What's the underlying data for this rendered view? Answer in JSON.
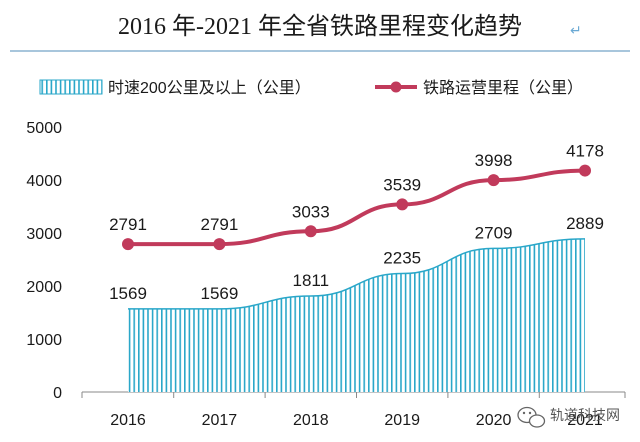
{
  "chart_data": {
    "type": "bar+line",
    "title": "2016 年-2021 年全省铁路里程变化趋势",
    "title_mark": "↵",
    "categories": [
      "2016",
      "2017",
      "2018",
      "2019",
      "2020",
      "2021"
    ],
    "y_ticks": [
      "0",
      "1000",
      "2000",
      "3000",
      "4000",
      "5000"
    ],
    "ylim": [
      0,
      5000
    ],
    "legend_position": "top",
    "grid": false,
    "series": [
      {
        "name": "时速200公里及以上（公里）",
        "kind": "area-bar",
        "values": [
          1569,
          1569,
          1811,
          2235,
          2709,
          2889
        ],
        "labels": [
          "1569",
          "1569",
          "1811",
          "2235",
          "2709",
          "2889"
        ],
        "color": "#2aa7c9"
      },
      {
        "name": "铁路运营里程（公里）",
        "kind": "line",
        "values": [
          2791,
          2791,
          3033,
          3539,
          3998,
          4178
        ],
        "labels": [
          "2791",
          "2791",
          "3033",
          "3539",
          "3998",
          "4178"
        ],
        "color": "#c13a5b"
      }
    ]
  },
  "watermark": {
    "text": "轨道科技网"
  },
  "colors": {
    "title_rule": "#a8c6dc",
    "axis": "#8a8a8a"
  }
}
